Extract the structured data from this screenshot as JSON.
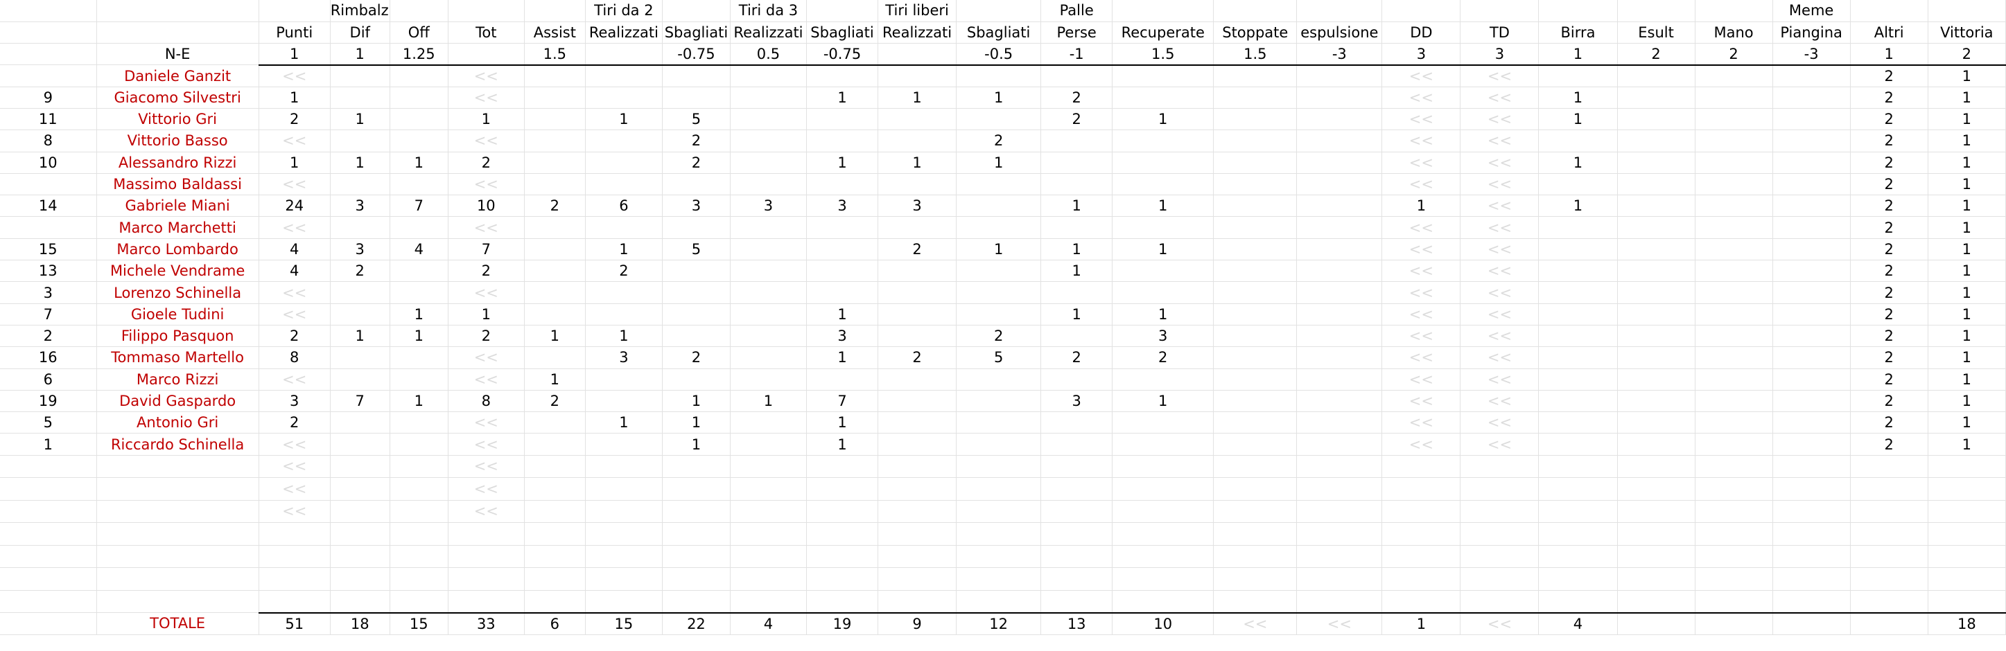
{
  "sheet": {
    "group_headers": [
      "",
      "",
      "",
      "Rimbalzi",
      "",
      "",
      "",
      "Tiri da 2",
      "",
      "Tiri da 3",
      "",
      "Tiri liberi",
      "",
      "Palle",
      "",
      "",
      "",
      "",
      "",
      "",
      "",
      "",
      "Meme",
      "",
      "",
      ""
    ],
    "column_headers": [
      "",
      "",
      "Punti",
      "Dif",
      "Off",
      "Tot",
      "Assist",
      "Realizzati",
      "Sbagliati",
      "Realizzati",
      "Sbagliati",
      "Realizzati",
      "Sbagliati",
      "Perse",
      "Recuperate",
      "Stoppate",
      "espulsione",
      "DD",
      "TD",
      "Birra",
      "Esult",
      "Mano",
      "Piangina",
      "Altri",
      "Vittoria"
    ],
    "weights": [
      "",
      "N-E",
      "1",
      "1",
      "1.25",
      "",
      "1.5",
      "",
      "-0.75",
      "0.5",
      "-0.75",
      "",
      "-0.5",
      "-1",
      "1.5",
      "1.5",
      "-3",
      "3",
      "3",
      "1",
      "2",
      "2",
      "-3",
      "1",
      "2"
    ],
    "ghost_mark": "<<",
    "players": [
      {
        "n": "",
        "name": "Daniele Ganzit",
        "stats": [
          "",
          "",
          "",
          "",
          "",
          "",
          "",
          "",
          "",
          "",
          "",
          "",
          "",
          "",
          "",
          "",
          "",
          "",
          "",
          "",
          "",
          "2",
          "1"
        ]
      },
      {
        "n": "9",
        "name": "Giacomo Silvestri",
        "stats": [
          "1",
          "",
          "",
          "",
          "",
          "",
          "",
          "",
          "1",
          "1",
          "1",
          "2",
          "",
          "",
          "",
          "",
          "",
          "1",
          "",
          "",
          "",
          "2",
          "1"
        ]
      },
      {
        "n": "11",
        "name": "Vittorio Gri",
        "stats": [
          "2",
          "1",
          "",
          "1",
          "",
          "1",
          "5",
          "",
          "",
          "",
          "",
          "2",
          "1",
          "",
          "",
          "",
          "",
          "1",
          "",
          "",
          "",
          "2",
          "1"
        ]
      },
      {
        "n": "8",
        "name": "Vittorio Basso",
        "stats": [
          "",
          "",
          "",
          "",
          "",
          "",
          "2",
          "",
          "",
          "",
          "2",
          "",
          "",
          "",
          "",
          "",
          "",
          "",
          "",
          "",
          "",
          "2",
          "1"
        ]
      },
      {
        "n": "10",
        "name": "Alessandro Rizzi",
        "stats": [
          "1",
          "1",
          "1",
          "2",
          "",
          "",
          "2",
          "",
          "1",
          "1",
          "1",
          "",
          "",
          "",
          "",
          "",
          "",
          "1",
          "",
          "",
          "",
          "2",
          "1"
        ]
      },
      {
        "n": "",
        "name": "Massimo Baldassi",
        "stats": [
          "",
          "",
          "",
          "",
          "",
          "",
          "",
          "",
          "",
          "",
          "",
          "",
          "",
          "",
          "",
          "",
          "",
          "",
          "",
          "",
          "",
          "2",
          "1"
        ]
      },
      {
        "n": "14",
        "name": "Gabriele Miani",
        "stats": [
          "24",
          "3",
          "7",
          "10",
          "2",
          "6",
          "3",
          "3",
          "3",
          "3",
          "",
          "1",
          "1",
          "",
          "",
          "1",
          "",
          "1",
          "",
          "",
          "",
          "2",
          "1"
        ]
      },
      {
        "n": "",
        "name": "Marco Marchetti",
        "stats": [
          "",
          "",
          "",
          "",
          "",
          "",
          "",
          "",
          "",
          "",
          "",
          "",
          "",
          "",
          "",
          "",
          "",
          "",
          "",
          "",
          "",
          "2",
          "1"
        ]
      },
      {
        "n": "15",
        "name": "Marco Lombardo",
        "stats": [
          "4",
          "3",
          "4",
          "7",
          "",
          "1",
          "5",
          "",
          "",
          "2",
          "1",
          "1",
          "1",
          "",
          "",
          "",
          "",
          "",
          "",
          "",
          "",
          "2",
          "1"
        ]
      },
      {
        "n": "13",
        "name": "Michele Vendrame",
        "stats": [
          "4",
          "2",
          "",
          "2",
          "",
          "2",
          "",
          "",
          "",
          "",
          "",
          "1",
          "",
          "",
          "",
          "",
          "",
          "",
          "",
          "",
          "",
          "2",
          "1"
        ]
      },
      {
        "n": "3",
        "name": "Lorenzo Schinella",
        "stats": [
          "",
          "",
          "",
          "",
          "",
          "",
          "",
          "",
          "",
          "",
          "",
          "",
          "",
          "",
          "",
          "",
          "",
          "",
          "",
          "",
          "",
          "2",
          "1"
        ]
      },
      {
        "n": "7",
        "name": "Gioele Tudini",
        "stats": [
          "",
          "",
          "1",
          "1",
          "",
          "",
          "",
          "",
          "1",
          "",
          "",
          "1",
          "1",
          "",
          "",
          "",
          "",
          "",
          "",
          "",
          "",
          "2",
          "1"
        ]
      },
      {
        "n": "2",
        "name": "Filippo Pasquon",
        "stats": [
          "2",
          "1",
          "1",
          "2",
          "1",
          "1",
          "",
          "",
          "3",
          "",
          "2",
          "",
          "3",
          "",
          "",
          "",
          "",
          "",
          "",
          "",
          "",
          "2",
          "1"
        ]
      },
      {
        "n": "16",
        "name": "Tommaso Martello",
        "stats": [
          "8",
          "",
          "",
          "",
          "",
          "3",
          "2",
          "",
          "1",
          "2",
          "5",
          "2",
          "2",
          "",
          "",
          "",
          "",
          "",
          "",
          "",
          "",
          "2",
          "1"
        ]
      },
      {
        "n": "6",
        "name": "Marco Rizzi",
        "stats": [
          "",
          "",
          "",
          "",
          "1",
          "",
          "",
          "",
          "",
          "",
          "",
          "",
          "",
          "",
          "",
          "",
          "",
          "",
          "",
          "",
          "",
          "2",
          "1"
        ]
      },
      {
        "n": "19",
        "name": "David Gaspardo",
        "stats": [
          "3",
          "7",
          "1",
          "8",
          "2",
          "",
          "1",
          "1",
          "7",
          "",
          "",
          "3",
          "1",
          "",
          "",
          "",
          "",
          "",
          "",
          "",
          "",
          "2",
          "1"
        ]
      },
      {
        "n": "5",
        "name": "Antonio Gri",
        "stats": [
          "2",
          "",
          "",
          "",
          "",
          "1",
          "1",
          "",
          "1",
          "",
          "",
          "",
          "",
          "",
          "",
          "",
          "",
          "",
          "",
          "",
          "",
          "2",
          "1"
        ]
      },
      {
        "n": "1",
        "name": "Riccardo Schinella",
        "stats": [
          "",
          "",
          "",
          "",
          "",
          "",
          "1",
          "",
          "1",
          "",
          "",
          "",
          "",
          "",
          "",
          "",
          "",
          "",
          "",
          "",
          "",
          "2",
          "1"
        ]
      }
    ],
    "totals": {
      "label": "TOTALE",
      "stats": [
        "51",
        "18",
        "15",
        "33",
        "6",
        "15",
        "22",
        "4",
        "19",
        "9",
        "12",
        "13",
        "10",
        "",
        "",
        "1",
        "",
        "4",
        "",
        "",
        "",
        "",
        "18"
      ]
    }
  }
}
